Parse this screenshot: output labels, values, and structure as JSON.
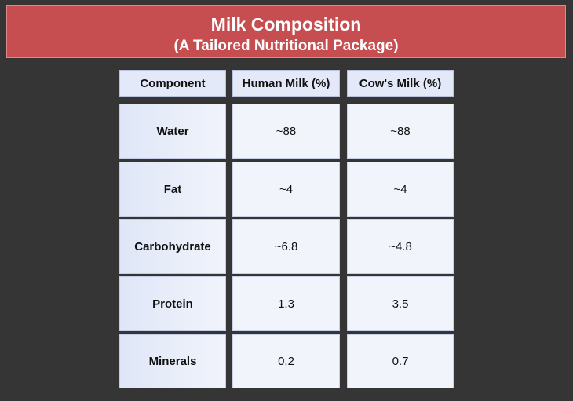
{
  "title": "Milk Composition",
  "subtitle": "(A Tailored Nutritional Package)",
  "colors": {
    "background": "#353535",
    "banner": "#c74e50",
    "header_cell": "#e3e9f8",
    "value_cell": "#f1f4fb"
  },
  "chart_data": {
    "type": "table",
    "title": "Milk Composition",
    "subtitle": "(A Tailored Nutritional Package)",
    "columns": [
      "Component",
      "Human Milk (%)",
      "Cow's Milk (%)"
    ],
    "rows": [
      {
        "component": "Water",
        "human": "~88",
        "cow": "~88"
      },
      {
        "component": "Fat",
        "human": "~4",
        "cow": "~4"
      },
      {
        "component": "Carbohydrate",
        "human": "~6.8",
        "cow": "~4.8"
      },
      {
        "component": "Protein",
        "human": "1.3",
        "cow": "3.5"
      },
      {
        "component": "Minerals",
        "human": "0.2",
        "cow": "0.7"
      }
    ]
  }
}
